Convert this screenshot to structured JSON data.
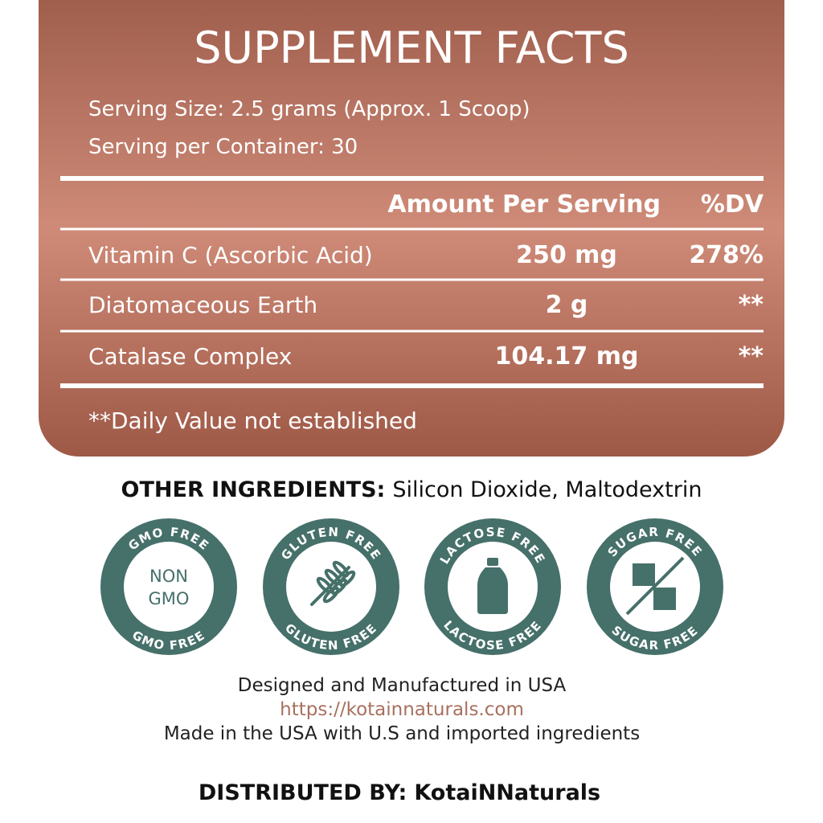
{
  "header": {
    "title": "SUPPLEMENT FACTS",
    "serving_size": "Serving Size: 2.5 grams (Approx. 1 Scoop)",
    "servings_per_container": "Serving per Container: 30"
  },
  "table": {
    "columns": [
      "Amount Per Serving",
      "%DV"
    ],
    "rows": [
      [
        "Vitamin C (Ascorbic Acid)",
        "250 mg",
        "278%"
      ],
      [
        "Diatomaceous Earth",
        "2 g",
        "**"
      ],
      [
        "Catalase Complex",
        "104.17 mg",
        "**"
      ]
    ]
  },
  "footnote": "**Daily Value not established",
  "other_ingredients": {
    "label": "OTHER INGREDIENTS:",
    "text": "Silicon Dioxide, Maltodextrin"
  },
  "badges": [
    {
      "top": "GMO FREE",
      "bottom": "GMO FREE",
      "icon_text": [
        "NON",
        "GMO"
      ]
    },
    {
      "top": "GLUTEN FREE",
      "bottom": "GLUTEN FREE"
    },
    {
      "top": "LACTOSE FREE",
      "bottom": "LACTOSE FREE"
    },
    {
      "top": "SUGAR FREE",
      "bottom": "SUGAR FREE"
    }
  ],
  "footer": {
    "lines": [
      "Designed and Manufactured in USA",
      "https://kotainnaturals.com",
      "Made in the USA with U.S and imported ingredients"
    ],
    "distributed_label": "DISTRIBUTED BY:",
    "distributor": "KotaiNNaturals"
  }
}
